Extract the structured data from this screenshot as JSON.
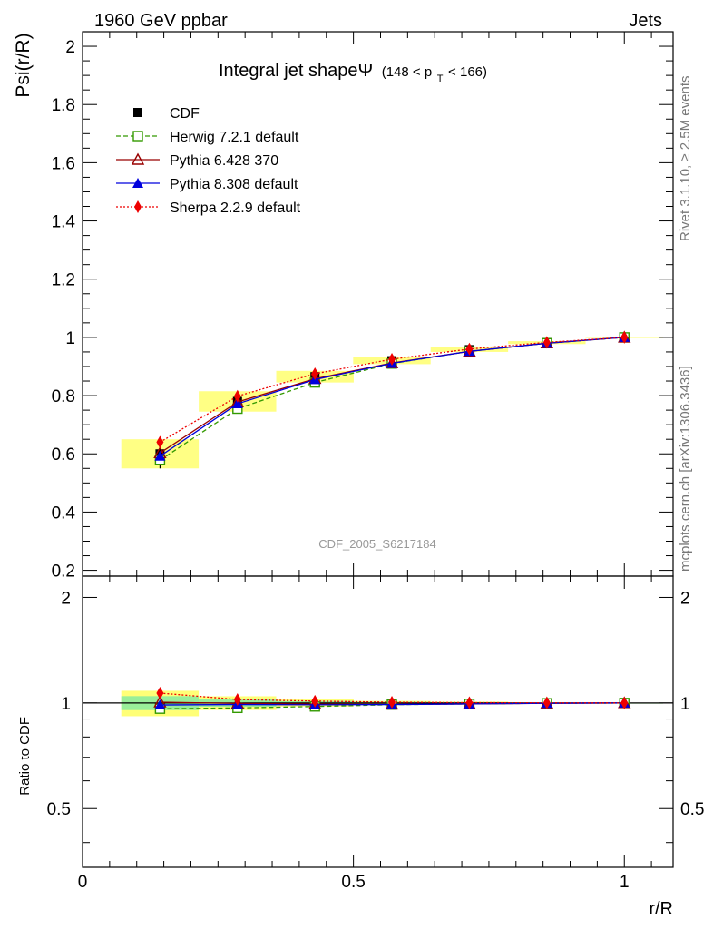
{
  "header": {
    "left": "1960 GeV ppbar",
    "right": "Jets"
  },
  "side_labels": {
    "rivet": "Rivet 3.1.10, ≥ 2.5M events",
    "mcplots": "mcplots.cern.ch [arXiv:1306.3436]"
  },
  "chart_data": {
    "type": "line",
    "title": "Integral jet shapeΨ",
    "title_sub": "(148 < p",
    "title_sub_index": "T",
    "title_sub_end": " < 166)",
    "watermark": "CDF_2005_S6217184",
    "xlabel": "r/R",
    "ylabel": "Psi(r/R)",
    "ratio_ylabel": "Ratio to CDF",
    "xlim": [
      0,
      1.09
    ],
    "ylim": [
      0.18,
      2.05
    ],
    "ratio_ylim": [
      0.34,
      2.3
    ],
    "x_ticks": [
      "0",
      "0.5",
      "1"
    ],
    "y_ticks": [
      "0.2",
      "0.4",
      "0.6",
      "0.8",
      "1",
      "1.2",
      "1.4",
      "1.6",
      "1.8",
      "2"
    ],
    "ratio_y_ticks": [
      "0.5",
      "1",
      "2"
    ],
    "x": [
      0.143,
      0.286,
      0.429,
      0.571,
      0.714,
      0.857,
      1.0
    ],
    "series": [
      {
        "name": "CDF",
        "color": "#000000",
        "marker": "square-filled",
        "line": "none",
        "values": [
          0.6,
          0.78,
          0.865,
          0.92,
          0.958,
          0.982,
          1.0
        ],
        "ratio": [
          1.0,
          1.0,
          1.0,
          1.0,
          1.0,
          1.0,
          1.0
        ],
        "band": [
          0.05,
          0.035,
          0.02,
          0.012,
          0.008,
          0.005,
          0.002
        ]
      },
      {
        "name": "Herwig 7.2.1 default",
        "color": "#339900",
        "marker": "square-open",
        "line": "dashed",
        "values": [
          0.578,
          0.755,
          0.845,
          0.91,
          0.952,
          0.98,
          1.0
        ],
        "ratio": [
          0.963,
          0.968,
          0.977,
          0.989,
          0.994,
          0.998,
          1.0
        ]
      },
      {
        "name": "Pythia 6.428 370",
        "color": "#990000",
        "marker": "triangle-open",
        "line": "solid",
        "values": [
          0.603,
          0.778,
          0.858,
          0.912,
          0.952,
          0.98,
          1.0
        ],
        "ratio": [
          1.005,
          0.997,
          0.992,
          0.991,
          0.994,
          0.998,
          1.0
        ]
      },
      {
        "name": "Pythia 8.308 default",
        "color": "#0000dd",
        "marker": "triangle-filled",
        "line": "solid",
        "values": [
          0.592,
          0.772,
          0.855,
          0.911,
          0.952,
          0.98,
          1.0
        ],
        "ratio": [
          0.987,
          0.99,
          0.988,
          0.99,
          0.994,
          0.998,
          1.0
        ]
      },
      {
        "name": "Sherpa 2.2.9 default",
        "color": "#ee0000",
        "marker": "diamond-filled",
        "line": "dotted",
        "values": [
          0.64,
          0.798,
          0.875,
          0.925,
          0.96,
          0.983,
          1.0
        ],
        "ratio": [
          1.067,
          1.023,
          1.012,
          1.005,
          1.002,
          1.001,
          1.0
        ]
      }
    ],
    "legend_position": "top-left",
    "grid": false
  }
}
